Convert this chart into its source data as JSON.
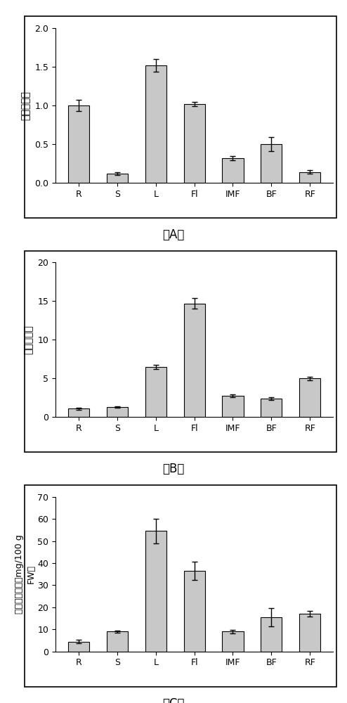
{
  "categories": [
    "R",
    "S",
    "L",
    "Fl",
    "IMF",
    "BF",
    "RF"
  ],
  "chartA": {
    "values": [
      1.0,
      0.12,
      1.52,
      1.02,
      0.32,
      0.5,
      0.14
    ],
    "errors": [
      0.07,
      0.02,
      0.08,
      0.03,
      0.03,
      0.09,
      0.02
    ],
    "ylabel": "相对表达量",
    "ylim": [
      0,
      2.0
    ],
    "yticks": [
      0,
      0.5,
      1.0,
      1.5,
      2.0
    ],
    "label": "（A）"
  },
  "chartB": {
    "values": [
      1.1,
      1.3,
      6.5,
      14.7,
      2.8,
      2.4,
      5.0
    ],
    "errors": [
      0.15,
      0.12,
      0.25,
      0.65,
      0.18,
      0.15,
      0.22
    ],
    "ylabel": "相对表达量",
    "ylim": [
      0,
      20
    ],
    "yticks": [
      0,
      5,
      10,
      15,
      20
    ],
    "label": "（B）"
  },
  "chartC": {
    "values": [
      4.5,
      9.0,
      54.5,
      36.5,
      9.0,
      15.5,
      17.0
    ],
    "errors": [
      0.8,
      0.5,
      5.5,
      4.0,
      0.8,
      4.0,
      1.2
    ],
    "ylabel": "抗坏血酸含量（mg/100 g\nFW）",
    "ylim": [
      0,
      70
    ],
    "yticks": [
      0,
      10,
      20,
      30,
      40,
      50,
      60,
      70
    ],
    "label": "（C）"
  },
  "bar_color": "#c8c8c8",
  "bar_edgecolor": "#000000",
  "background_color": "#ffffff",
  "errorbar_color": "#000000",
  "errorbar_capsize": 3,
  "bar_width": 0.55
}
